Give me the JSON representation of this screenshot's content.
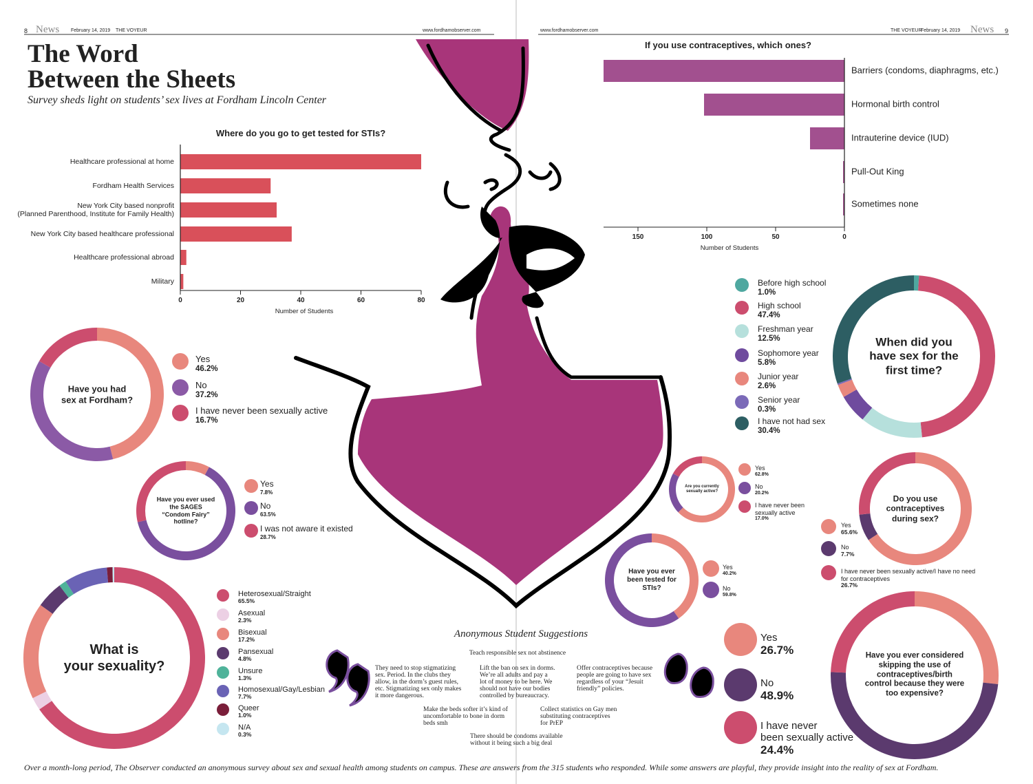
{
  "header": {
    "page_left": "8",
    "section_left": "News",
    "date_left": "February 14, 2019",
    "paper_left": "THE VOYEUR",
    "url_left": "www.fordhamobserver.com",
    "url_right": "www.fordhamobserver.com",
    "paper_right": "THE VOYEUR",
    "date_right": "February 14, 2019",
    "section_right": "News",
    "page_right": "9"
  },
  "title": "The Word\nBetween the Sheets",
  "subtitle": "Survey sheds light on students’ sex lives at Fordham Lincoln Center",
  "chart_data": [
    {
      "type": "bar",
      "orientation": "horizontal",
      "title": "Where do you go to get tested for STIs?",
      "categories": [
        "Healthcare professional at home",
        "Fordham Health Services",
        "New York City based nonprofit\n(Planned Parenthood, Institute for Family Health)",
        "New York City based healthcare professional",
        "Healthcare professional abroad",
        "Military"
      ],
      "values": [
        80,
        30,
        32,
        37,
        2,
        1
      ],
      "color": "#d9505a",
      "xlim": [
        0,
        80
      ],
      "xticks": [
        0,
        20,
        40,
        60,
        80
      ],
      "xlabel": "Number of Students",
      "x_reversed": false
    },
    {
      "type": "bar",
      "orientation": "horizontal",
      "title": "If you use contraceptives, which ones?",
      "categories": [
        "Barriers (condoms, diaphragms, etc.)",
        "Hormonal birth control",
        "Intrauterine device (IUD)",
        "Pull-Out King",
        "Sometimes none"
      ],
      "values": [
        175,
        102,
        25,
        1,
        1
      ],
      "color": "#a2508f",
      "xlim": [
        0,
        175
      ],
      "xticks": [
        0,
        50,
        100,
        150
      ],
      "xlabel": "Number of Students",
      "x_reversed": true
    },
    {
      "type": "donut",
      "title": "Have you had\nsex at Fordham?",
      "categories": [
        "Yes",
        "No",
        "I have never been sexually active"
      ],
      "values": [
        46.2,
        37.2,
        16.7
      ],
      "value_labels": [
        "46.2%",
        "37.2%",
        "16.7%"
      ],
      "colors": [
        "#e8877d",
        "#8b5aa6",
        "#cc4d6e"
      ]
    },
    {
      "type": "donut",
      "title": "Have you ever used\nthe SAGES\n“Condom Fairy”\nhotline?",
      "categories": [
        "Yes",
        "No",
        "I was not aware it existed"
      ],
      "values": [
        7.8,
        63.5,
        28.7
      ],
      "value_labels": [
        "7.8%",
        "63.5%",
        "28.7%"
      ],
      "colors": [
        "#e8877d",
        "#7a4f9e",
        "#cc4d6e"
      ]
    },
    {
      "type": "donut",
      "title": "When did you\nhave sex for the\nfirst time?",
      "categories": [
        "Before high school",
        "High school",
        "Freshman year",
        "Sophomore year",
        "Junior year",
        "Senior year",
        "I have not had sex"
      ],
      "values": [
        1.0,
        47.4,
        12.5,
        5.8,
        2.6,
        0.3,
        30.4
      ],
      "value_labels": [
        "1.0%",
        "47.4%",
        "12.5%",
        "5.8%",
        "2.6%",
        "0.3%",
        "30.4%"
      ],
      "colors": [
        "#4fa8a0",
        "#cc4d6e",
        "#b6e0dc",
        "#6f4b9e",
        "#e8877d",
        "#7b6ab8",
        "#2d5e63"
      ]
    },
    {
      "type": "donut",
      "title": "Are you currently\nsexually active?",
      "categories": [
        "Yes",
        "No",
        "I have never been\nsexually active"
      ],
      "values": [
        62.8,
        20.2,
        17.0
      ],
      "value_labels": [
        "62.8%",
        "20.2%",
        "17.0%"
      ],
      "colors": [
        "#e8877d",
        "#7a4f9e",
        "#cc4d6e"
      ]
    },
    {
      "type": "donut",
      "title": "Do you use\ncontraceptives\nduring sex?",
      "categories": [
        "Yes",
        "No",
        "I have never been sexually active/I have no need\nfor contraceptives"
      ],
      "values": [
        65.6,
        7.7,
        26.7
      ],
      "value_labels": [
        "65.6%",
        "7.7%",
        "26.7%"
      ],
      "colors": [
        "#e8877d",
        "#5b3a6e",
        "#cc4d6e"
      ]
    },
    {
      "type": "donut",
      "title": "Have you ever\nbeen tested for\nSTIs?",
      "categories": [
        "Yes",
        "No"
      ],
      "values": [
        40.2,
        59.8
      ],
      "value_labels": [
        "40.2%",
        "59.8%"
      ],
      "colors": [
        "#e8877d",
        "#7a4f9e"
      ]
    },
    {
      "type": "donut",
      "title": "What is\nyour sexuality?",
      "categories": [
        "Heterosexual/Straight",
        "Asexual",
        "Bisexual",
        "Pansexual",
        "Unsure",
        "Homosexual/Gay/Lesbian",
        "Queer",
        "N/A"
      ],
      "values": [
        65.5,
        2.3,
        17.2,
        4.8,
        1.3,
        7.7,
        1.0,
        0.3
      ],
      "value_labels": [
        "65.5%",
        "2.3%",
        "17.2%",
        "4.8%",
        "1.3%",
        "7.7%",
        "1.0%",
        "0.3%"
      ],
      "colors": [
        "#cc4d6e",
        "#ecd0e4",
        "#e8877d",
        "#5b3a6e",
        "#4fb39a",
        "#6a63b5",
        "#7a1e3a",
        "#c5e6f0"
      ]
    },
    {
      "type": "donut",
      "title": "Have you ever considered\nskipping the use of\ncontraceptives/birth\ncontrol because they were\ntoo expensive?",
      "categories": [
        "Yes",
        "No",
        "I have never\nbeen sexually active"
      ],
      "values": [
        26.7,
        48.9,
        24.4
      ],
      "value_labels": [
        "26.7%",
        "48.9%",
        "24.4%"
      ],
      "colors": [
        "#e8877d",
        "#5b3a6e",
        "#cc4d6e"
      ]
    }
  ],
  "suggestions": {
    "heading": "Anonymous Student Suggestions",
    "quotes": [
      "Teach responsible sex not abstinence",
      "They need to stop stigmatizing\nsex. Period. In the clubs they\nallow, in the dorm’s guest rules,\netc. Stigmatizing sex only makes\nit more dangerous.",
      "Lift the ban on sex in dorms.\nWe’re all adults and pay a\nlot of money to be here. We\nshould not have our bodies\ncontrolled by bureaucracy.",
      "Offer contraceptives because\npeople are going to have sex\nregardless of your “Jesuit\nfriendly” policies.",
      "Make the beds softer it’s kind of\nuncomfortable to bone in dorm\nbeds smh",
      "Collect statistics on Gay men\nsubstituting contraceptives\nfor PrEP",
      "There should be condoms available\nwithout it being such a big deal"
    ]
  },
  "footer": "Over a month-long period, The Observer conducted an anonymous survey about sex and sexual health among students on campus. These are answers from the 315 students who responded. While some answers are playful, they provide insight into the reality of sex at Fordham."
}
